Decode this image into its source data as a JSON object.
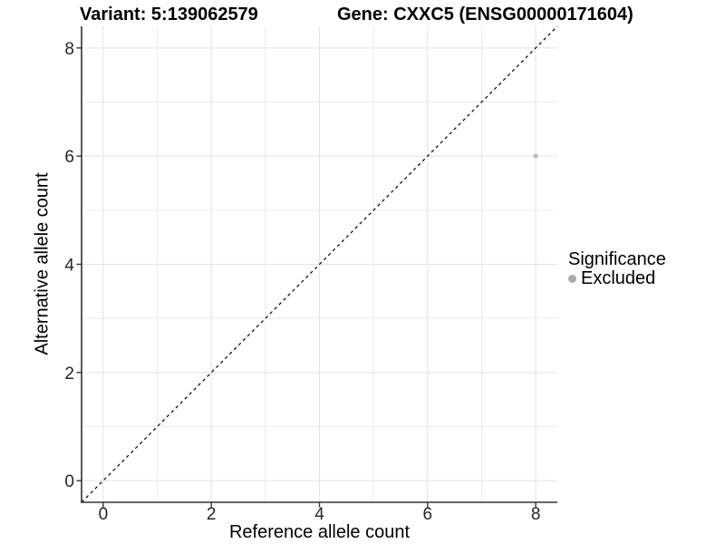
{
  "chart_data": {
    "type": "scatter",
    "titles": {
      "left": "Variant: 5:139062579",
      "right": "Gene: CXXC5 (ENSG00000171604)"
    },
    "xlabel": "Reference allele count",
    "ylabel": "Alternative allele count",
    "xlim": [
      -0.4,
      8.4
    ],
    "ylim": [
      -0.4,
      8.4
    ],
    "x_major_ticks": [
      0,
      2,
      4,
      6,
      8
    ],
    "y_major_ticks": [
      0,
      2,
      4,
      6,
      8
    ],
    "x_minor_gridlines": [
      1,
      3,
      5,
      7
    ],
    "y_minor_gridlines": [
      1,
      3,
      5,
      7
    ],
    "grid": "on",
    "identity_line": {
      "description": "y = x",
      "style": "dashed",
      "color": "#000000"
    },
    "series": [
      {
        "name": "Excluded",
        "color": "#bdbdbd",
        "points": [
          {
            "x": 8,
            "y": 6
          }
        ]
      }
    ],
    "legend": {
      "position": "right",
      "title": "Significance",
      "items": [
        {
          "label": "Excluded",
          "color": "#ababab",
          "marker": "circle"
        }
      ]
    },
    "colors": {
      "background": "#ffffff",
      "grid_major": "#e3e3e3",
      "grid_minor": "#ececec",
      "axis_line": "#333333",
      "tick_text": "#262626"
    }
  }
}
